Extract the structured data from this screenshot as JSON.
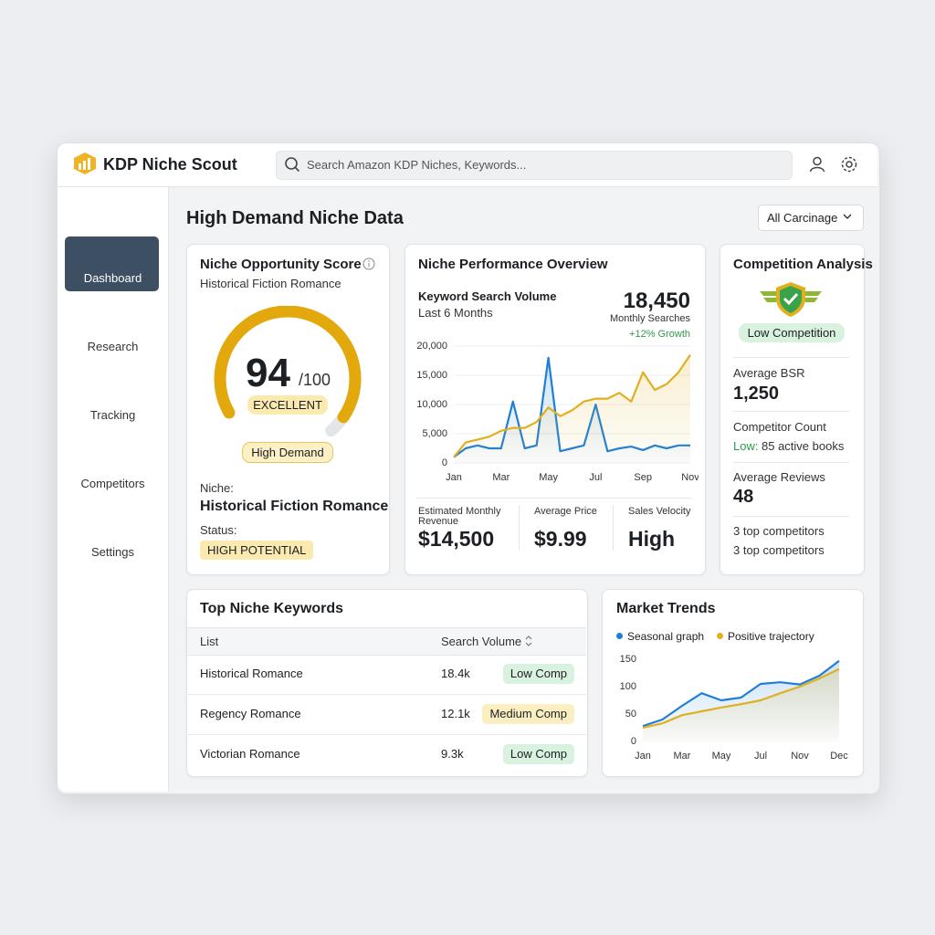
{
  "app": {
    "brand": "KDP Niche Scout",
    "search_placeholder": "Search Amazon KDP Niches, Keywords..."
  },
  "nav": {
    "items": [
      "Dashboard",
      "Research",
      "Tracking",
      "Competitors",
      "Settings"
    ],
    "active": 0
  },
  "page": {
    "title": "High Demand Niche Data",
    "filter": "All Carcinage"
  },
  "score_card": {
    "title": "Niche Opportunity Score",
    "subtitle": "Historical Fiction Romance",
    "score": 94,
    "score_max": {
      "value": 100,
      "label": "/100"
    },
    "rating": "EXCELLENT",
    "badge": "High Demand",
    "niche_label": "Niche:",
    "niche": "Historical Fiction Romance",
    "status_label": "Status:",
    "status": "HIGH POTENTIAL",
    "color": "#e3a80c"
  },
  "performance": {
    "title": "Niche Performance Overview",
    "headline": {
      "value": "18,450",
      "label": "Monthly Searches",
      "growth": "+12% Growth"
    },
    "chart": {
      "type": "line",
      "title": "Keyword Search Volume",
      "subtitle": "Last 6 Months",
      "categories": [
        "Jan",
        null,
        null,
        null,
        "Mar",
        null,
        null,
        null,
        "May",
        null,
        null,
        null,
        "Jul",
        null,
        null,
        null,
        "Sep",
        null,
        null,
        null,
        "Nov"
      ],
      "series": [
        {
          "color": "#1f7fd6",
          "values": [
            1000,
            2500,
            3000,
            2500,
            2500,
            10500,
            2500,
            3000,
            18000,
            2000,
            2500,
            3000,
            10000,
            2000,
            2500,
            2800,
            2200,
            3000,
            2500,
            3000,
            3000
          ]
        },
        {
          "color": "#e0b021",
          "values": [
            1000,
            3500,
            4000,
            4500,
            5500,
            6000,
            6000,
            7000,
            9500,
            8000,
            9000,
            10500,
            11000,
            11000,
            12000,
            10500,
            15500,
            12500,
            13500,
            15500,
            18500
          ]
        }
      ],
      "ylim": [
        0,
        20000
      ],
      "yticks": [
        0,
        {
          "value": 5000,
          "label": "5,000"
        },
        {
          "value": 10000,
          "label": "10,000"
        },
        {
          "value": 15000,
          "label": "15,000"
        },
        {
          "value": 20000,
          "label": "20,000"
        }
      ],
      "grid": true
    },
    "stats": [
      {
        "label": "Estimated Monthly Revenue",
        "value": "$14,500"
      },
      {
        "label": "Average Price",
        "value": "$9.99"
      },
      {
        "label": "Sales Velocity",
        "value": "High"
      }
    ]
  },
  "competition": {
    "title": "Competition Analysis",
    "badge": "Low Competition",
    "bsr_label": "Average BSR",
    "bsr": "1,250",
    "count_label": "Competitor Count",
    "count_level": "Low:",
    "count": "85 active books",
    "reviews_label": "Average Reviews",
    "reviews": "48",
    "notes": [
      "3 top competitors",
      "3 top competitors"
    ]
  },
  "keywords": {
    "title": "Top Niche Keywords",
    "headers": [
      "List",
      "Search Volume"
    ],
    "rows": [
      {
        "keyword": "Historical Romance",
        "volume": "18.4k",
        "competition": "Low Comp",
        "badge_color": "#d9f2df"
      },
      {
        "keyword": "Regency Romance",
        "volume": "12.1k",
        "competition": "Medium Comp",
        "badge_color": "#fbefc2"
      },
      {
        "keyword": "Victorian Romance",
        "volume": "9.3k",
        "competition": "Low Comp",
        "badge_color": "#d9f2df"
      }
    ]
  },
  "trends": {
    "title": "Market Trends",
    "chart": {
      "type": "line",
      "categories": [
        "Jan",
        null,
        "Mar",
        null,
        "May",
        null,
        "Jul",
        null,
        "Nov",
        null,
        "Dec"
      ],
      "series": [
        {
          "name": "Seasonal graph",
          "color": "#1f7fd6",
          "values": [
            28,
            40,
            65,
            88,
            75,
            80,
            105,
            108,
            104,
            120,
            147
          ]
        },
        {
          "name": "Positive trajectory",
          "color": "#e0b021",
          "values": [
            25,
            33,
            48,
            55,
            62,
            68,
            75,
            88,
            100,
            115,
            132
          ]
        }
      ],
      "ylim": [
        0,
        150
      ],
      "yticks": [
        0,
        50,
        100,
        150
      ],
      "grid": false
    }
  }
}
